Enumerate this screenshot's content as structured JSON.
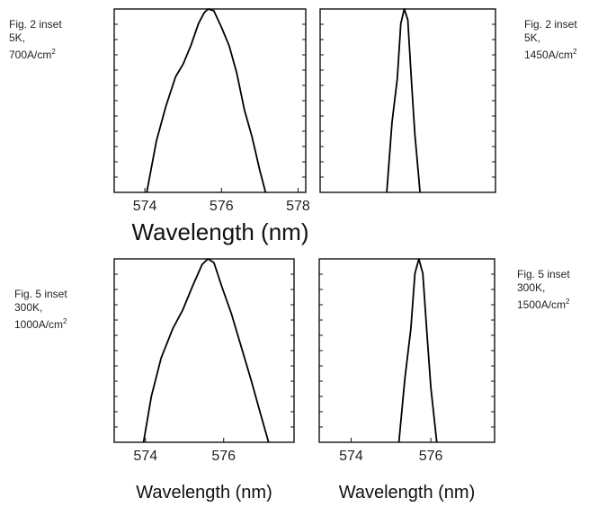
{
  "captions": [
    {
      "line1": "Fig. 2 inset",
      "line2": "5K,",
      "line3": "700A/cm",
      "sup": "2"
    },
    {
      "line1": "Fig. 2 inset",
      "line2": "5K,",
      "line3": "1450A/cm",
      "sup": "2"
    },
    {
      "line1": "Fig. 5 inset",
      "line2": "300K,",
      "line3": "1000A/cm",
      "sup": "2"
    },
    {
      "line1": "Fig. 5 inset",
      "line2": "300K,",
      "line3": "1500A/cm",
      "sup": "2"
    }
  ],
  "chart_data": [
    {
      "type": "line",
      "xlabel": "",
      "ylabel": "",
      "xlim": [
        573.2,
        578.2
      ],
      "ylim": [
        0,
        1
      ],
      "xticks": [
        "574",
        "576",
        "578"
      ],
      "grid": false,
      "series": [
        {
          "x": [
            574.05,
            574.3,
            574.55,
            574.8,
            575.0,
            575.2,
            575.4,
            575.55,
            575.65,
            575.8,
            576.0,
            576.2,
            576.4,
            576.6,
            576.8,
            577.0,
            577.15
          ],
          "values": [
            0,
            0.28,
            0.47,
            0.63,
            0.7,
            0.8,
            0.92,
            0.98,
            1.0,
            0.99,
            0.9,
            0.8,
            0.65,
            0.45,
            0.3,
            0.12,
            0
          ]
        }
      ]
    },
    {
      "type": "line",
      "xlabel": "",
      "ylabel": "",
      "xlim": [
        573.2,
        578.2
      ],
      "ylim": [
        0,
        1
      ],
      "grid": false,
      "series": [
        {
          "x": [
            575.1,
            575.25,
            575.4,
            575.5,
            575.6,
            575.7,
            575.8,
            575.9,
            576.05
          ],
          "values": [
            0,
            0.38,
            0.62,
            0.92,
            1.0,
            0.94,
            0.62,
            0.32,
            0
          ]
        }
      ]
    },
    {
      "type": "line",
      "xlabel": "Wavelength (nm)",
      "ylabel": "",
      "xlim": [
        573.2,
        577.8
      ],
      "ylim": [
        0,
        1
      ],
      "xticks": [
        "574",
        "576"
      ],
      "grid": false,
      "series": [
        {
          "x": [
            573.95,
            574.15,
            574.4,
            574.7,
            574.95,
            575.2,
            575.45,
            575.6,
            575.75,
            575.95,
            576.2,
            576.45,
            576.7,
            576.95,
            577.15
          ],
          "values": [
            0,
            0.25,
            0.46,
            0.62,
            0.72,
            0.85,
            0.97,
            1.0,
            0.98,
            0.85,
            0.7,
            0.52,
            0.34,
            0.15,
            0
          ]
        }
      ]
    },
    {
      "type": "line",
      "xlabel": "Wavelength (nm)",
      "ylabel": "",
      "xlim": [
        573.2,
        577.6
      ],
      "ylim": [
        0,
        1
      ],
      "xticks": [
        "574",
        "576"
      ],
      "grid": false,
      "series": [
        {
          "x": [
            575.2,
            575.35,
            575.5,
            575.6,
            575.7,
            575.8,
            575.9,
            576.0,
            576.15
          ],
          "values": [
            0,
            0.35,
            0.62,
            0.92,
            1.0,
            0.92,
            0.6,
            0.3,
            0
          ]
        }
      ]
    }
  ],
  "shared_xlabel": "Wavelength (nm)"
}
